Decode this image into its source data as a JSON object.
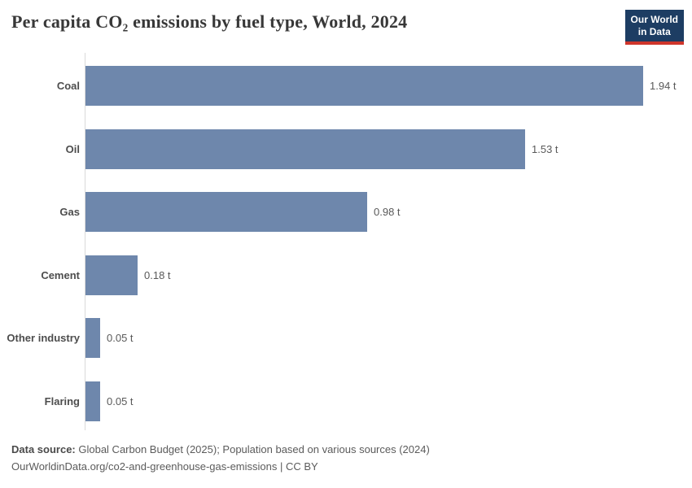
{
  "title": "Per capita CO₂ emissions by fuel type, World, 2024",
  "logo": {
    "line1": "Our World",
    "line2": "in Data",
    "background_color": "#1d3d63",
    "accent_color": "#cf352b"
  },
  "chart_data": {
    "type": "bar",
    "orientation": "horizontal",
    "title": "Per capita CO₂ emissions by fuel type, World, 2024",
    "categories": [
      "Coal",
      "Oil",
      "Gas",
      "Cement",
      "Other industry",
      "Flaring"
    ],
    "values": [
      1.94,
      1.53,
      0.98,
      0.18,
      0.05,
      0.05
    ],
    "value_labels": [
      "1.94 t",
      "1.53 t",
      "0.98 t",
      "0.18 t",
      "0.05 t",
      "0.05 t"
    ],
    "unit": "t",
    "xlabel": "",
    "ylabel": "",
    "xlim": [
      0,
      1.94
    ],
    "grid": false,
    "legend": "none",
    "value_label_position": "end-of-bar",
    "bar_color": "#6e87ac",
    "axis_line_color": "#dadada"
  },
  "footer": {
    "source_label": "Data source:",
    "source_text": " Global Carbon Budget (2025); Population based on various sources (2024)",
    "url_line": "OurWorldinData.org/co2-and-greenhouse-gas-emissions | CC BY"
  }
}
